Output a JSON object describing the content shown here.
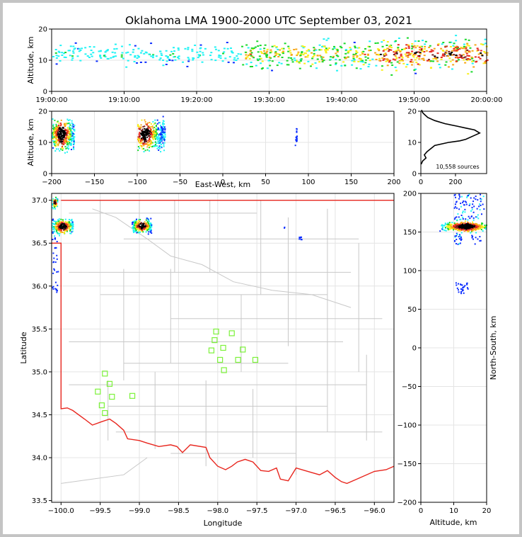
{
  "title": "Oklahoma LMA 1900-2000 UTC September 03, 2021",
  "colors": {
    "state_border": "#e8261e",
    "county_lines": "#c8c8c8",
    "stations": "#7cf23a",
    "frame_bg": "#c4c4c4",
    "density_scale": [
      "#ffffff",
      "#0a2cff",
      "#21f3f5",
      "#18d92b",
      "#f9ef1a",
      "#f7a616",
      "#e8261e",
      "#7a1f1f",
      "#000000"
    ]
  },
  "chart_data": [
    {
      "id": "time_height",
      "type": "heatmap",
      "ylabel": "Altitude, km",
      "xlabel": "",
      "xticks": [
        "19:00:00",
        "19:10:00",
        "19:20:00",
        "19:30:00",
        "19:40:00",
        "19:50:00",
        "20:00:00"
      ],
      "yticks": [
        "0",
        "10",
        "20"
      ],
      "xlim": [
        "19:00:00",
        "20:00:00"
      ],
      "ylim": [
        0,
        20
      ],
      "grid": true,
      "activity": [
        {
          "start_min": 0,
          "end_min": 26,
          "alt_km": [
            8,
            16
          ],
          "intensity": "low"
        },
        {
          "start_min": 26,
          "end_min": 45,
          "alt_km": [
            7,
            17
          ],
          "intensity": "medium"
        },
        {
          "start_min": 45,
          "end_min": 60,
          "alt_km": [
            6,
            18
          ],
          "intensity": "high"
        }
      ]
    },
    {
      "id": "ew_height",
      "type": "heatmap",
      "xlabel": "East-West, km",
      "ylabel": "Altitude, km",
      "xticks": [
        "−200",
        "−150",
        "−100",
        "−50",
        "0",
        "50",
        "100",
        "150",
        "200"
      ],
      "yticks": [
        "0",
        "10",
        "20"
      ],
      "xlim": [
        -200,
        200
      ],
      "ylim": [
        0,
        20
      ],
      "grid": true,
      "clusters": [
        {
          "x_km": [
            -200,
            -174
          ],
          "alt_km": [
            5,
            20
          ],
          "core_km": [
            -194,
            -184
          ]
        },
        {
          "x_km": [
            -100,
            -68
          ],
          "alt_km": [
            3,
            20
          ],
          "core_km": [
            -95,
            -88
          ]
        },
        {
          "x_km": [
            84,
            86
          ],
          "alt_km": [
            6,
            19
          ],
          "core_km": [
            84,
            86
          ]
        }
      ]
    },
    {
      "id": "alt_histogram",
      "type": "line",
      "xlabel": "",
      "ylabel": "",
      "xticks": [
        "0",
        "200"
      ],
      "yticks": [
        "0",
        "10",
        "20"
      ],
      "xlim": [
        0,
        380
      ],
      "ylim": [
        0,
        20
      ],
      "annotation": "10,558 sources",
      "x": [
        2,
        10,
        30,
        20,
        35,
        80,
        160,
        225,
        260,
        300,
        340,
        310,
        260,
        210,
        140,
        80,
        40,
        20,
        10,
        4
      ],
      "y": [
        3,
        4,
        5,
        6,
        7,
        9,
        10,
        10.5,
        11,
        12,
        13,
        14,
        14.6,
        15.2,
        16,
        17,
        18,
        19,
        19.6,
        20.4
      ]
    },
    {
      "id": "plan_view",
      "type": "heatmap",
      "xlabel": "Longitude",
      "ylabel": "Latitude",
      "xticks": [
        "−100.0",
        "−99.5",
        "−99.0",
        "−98.5",
        "−98.0",
        "−97.5",
        "−97.0",
        "−96.5",
        "−96.0"
      ],
      "yticks": [
        "33.5",
        "34.0",
        "34.5",
        "35.0",
        "35.5",
        "36.0",
        "36.5",
        "37.0"
      ],
      "xlim": [
        -100.12,
        -95.75
      ],
      "ylim": [
        33.48,
        37.08
      ],
      "grid": true,
      "stations": [
        {
          "lon": -98.02,
          "lat": 35.47
        },
        {
          "lon": -97.82,
          "lat": 35.45
        },
        {
          "lon": -98.04,
          "lat": 35.37
        },
        {
          "lon": -97.93,
          "lat": 35.28
        },
        {
          "lon": -98.08,
          "lat": 35.25
        },
        {
          "lon": -97.68,
          "lat": 35.26
        },
        {
          "lon": -97.97,
          "lat": 35.14
        },
        {
          "lon": -97.74,
          "lat": 35.14
        },
        {
          "lon": -97.52,
          "lat": 35.14
        },
        {
          "lon": -97.92,
          "lat": 35.02
        },
        {
          "lon": -99.44,
          "lat": 34.98
        },
        {
          "lon": -99.38,
          "lat": 34.86
        },
        {
          "lon": -99.53,
          "lat": 34.77
        },
        {
          "lon": -99.35,
          "lat": 34.71
        },
        {
          "lon": -99.09,
          "lat": 34.72
        },
        {
          "lon": -99.48,
          "lat": 34.61
        },
        {
          "lon": -99.44,
          "lat": 34.52
        }
      ]
    },
    {
      "id": "ns_height",
      "type": "heatmap",
      "xlabel": "Altitude, km",
      "ylabel": "North-South, km",
      "xticks": [
        "0",
        "10",
        "20"
      ],
      "yticks": [
        "200",
        "150",
        "100",
        "50",
        "0",
        "−50",
        "−100",
        "−150",
        "−200"
      ],
      "xlim": [
        0,
        20
      ],
      "ylim": [
        -200,
        200
      ],
      "grid": true,
      "clusters": [
        {
          "ns_km": [
            135,
            200
          ],
          "alt_km": [
            0,
            20
          ],
          "core_ns_km": [
            152,
            164
          ]
        },
        {
          "ns_km": [
            70,
            85
          ],
          "alt_km": [
            10,
            15
          ],
          "core_ns_km": [
            72,
            78
          ]
        }
      ]
    }
  ]
}
